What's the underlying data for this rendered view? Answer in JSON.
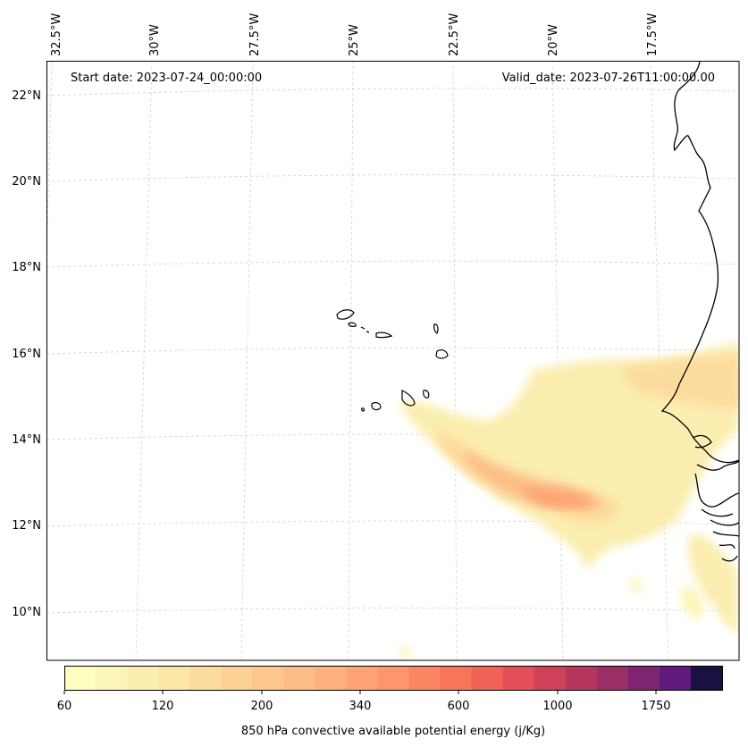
{
  "map": {
    "start_date": "Start date: 2023-07-24_00:00:00",
    "valid_date": "Valid_date: 2023-07-26T11:00:00.00",
    "lon_labels": [
      "32.5°W",
      "30°W",
      "27.5°W",
      "25°W",
      "22.5°W",
      "20°W",
      "17.5°W"
    ],
    "lat_labels": [
      "22°N",
      "20°N",
      "18°N",
      "16°N",
      "14°N",
      "12°N",
      "10°N"
    ],
    "variable": "850 hPa convective available potential energy",
    "units": "j/Kg"
  },
  "colorbar": {
    "label": "850 hPa convective available potential energy (j/Kg)",
    "tick_labels": [
      "60",
      "120",
      "200",
      "340",
      "600",
      "1000",
      "1750"
    ],
    "colors": [
      "#fcfdbf",
      "#fcf5b8",
      "#fbeeb0",
      "#fbe6a8",
      "#fcdb9f",
      "#fdd196",
      "#fdc78e",
      "#fdbd86",
      "#feb07d",
      "#fea374",
      "#fe956c",
      "#fb8664",
      "#f8755c",
      "#f06156",
      "#e24f56",
      "#cf4059",
      "#b5375d",
      "#9a2e66",
      "#7f2570",
      "#5f1a7c",
      "#1a1042"
    ]
  },
  "chart_data": {
    "type": "heatmap",
    "title": "850 hPa convective available potential energy (j/Kg)",
    "lon_range": [
      -33,
      -15
    ],
    "lat_range": [
      9,
      22.5
    ],
    "contour_levels": [
      60,
      120,
      200,
      340,
      600,
      1000,
      1750
    ],
    "cape_maxima": [
      {
        "lat": 12.6,
        "lon": -21.0,
        "value": 700
      },
      {
        "lat": 13.2,
        "lon": -22.5,
        "value": 340
      },
      {
        "lat": 15.2,
        "lon": -15.5,
        "value": 200
      }
    ]
  }
}
